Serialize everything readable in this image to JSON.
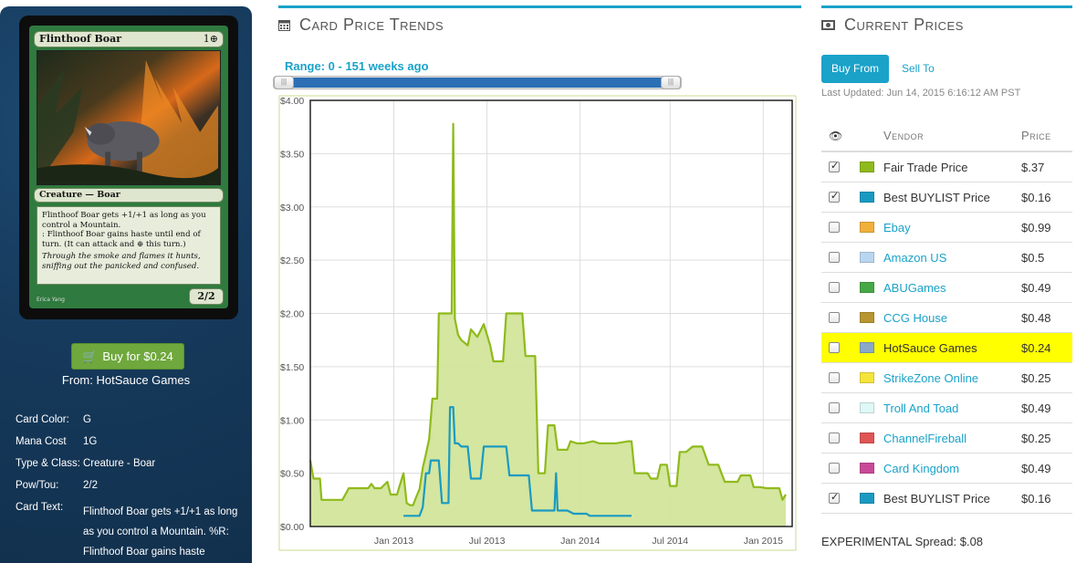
{
  "card": {
    "name": "Flinthoof Boar",
    "cost": "1⊕",
    "type_line": "Creature — Boar",
    "rules_1": "Flinthoof Boar gets +1/+1 as long as you control a Mountain.",
    "rules_2": ": Flinthoof Boar gains haste until end of turn. (It can attack and ⊕ this turn.)",
    "flavor": "Through the smoke and flames it hunts, sniffing out the panicked and confused.",
    "pt": "2/2",
    "artist": "Erica Yang"
  },
  "buy": {
    "label": "Buy for $0.24",
    "from": "From: HotSauce Games"
  },
  "details": [
    {
      "key": "Card Color:",
      "value": "G"
    },
    {
      "key": "Mana Cost",
      "value": "1G"
    },
    {
      "key": "Type & Class:",
      "value": "Creature - Boar"
    },
    {
      "key": "Pow/Tou:",
      "value": "2/2"
    },
    {
      "key": "Card Text:",
      "value": "Flinthoof Boar gets +1/+1 as long as you control a Mountain. %R: Flinthoof Boar gains haste"
    }
  ],
  "trends": {
    "title": "Card Price Trends",
    "range_label": "Range: 0 - 151 weeks ago",
    "handle_glyph": "|||"
  },
  "chart_data": {
    "type": "line",
    "ylim": [
      0,
      4
    ],
    "y_ticks": [
      "$0.00",
      "$0.50",
      "$1.00",
      "$1.50",
      "$2.00",
      "$2.50",
      "$3.00",
      "$3.50",
      "$4.00"
    ],
    "x_ticks": [
      "Jan 2013",
      "Jul 2013",
      "Jan 2014",
      "Jul 2014",
      "Jan 2015"
    ],
    "series": [
      {
        "name": "Fair Trade Price",
        "color": "#8fba1c",
        "fill": "#d2e59a",
        "points": [
          [
            0,
            0.62
          ],
          [
            0.01,
            0.45
          ],
          [
            0.03,
            0.45
          ],
          [
            0.035,
            0.25
          ],
          [
            0.07,
            0.25
          ],
          [
            0.08,
            0.25
          ],
          [
            0.1,
            0.25
          ],
          [
            0.12,
            0.36
          ],
          [
            0.16,
            0.36
          ],
          [
            0.18,
            0.36
          ],
          [
            0.19,
            0.4
          ],
          [
            0.2,
            0.36
          ],
          [
            0.22,
            0.36
          ],
          [
            0.24,
            0.42
          ],
          [
            0.25,
            0.3
          ],
          [
            0.27,
            0.3
          ],
          [
            0.29,
            0.5
          ],
          [
            0.3,
            0.22
          ],
          [
            0.31,
            0.2
          ],
          [
            0.32,
            0.2
          ],
          [
            0.33,
            0.28
          ],
          [
            0.34,
            0.35
          ],
          [
            0.35,
            0.55
          ],
          [
            0.36,
            0.68
          ],
          [
            0.37,
            0.82
          ],
          [
            0.38,
            1.2
          ],
          [
            0.395,
            1.2
          ],
          [
            0.4,
            2.0
          ],
          [
            0.44,
            2.0
          ],
          [
            0.445,
            3.78
          ],
          [
            0.45,
            1.95
          ],
          [
            0.46,
            1.8
          ],
          [
            0.47,
            1.75
          ],
          [
            0.49,
            1.7
          ],
          [
            0.5,
            1.85
          ],
          [
            0.52,
            1.78
          ],
          [
            0.54,
            1.9
          ],
          [
            0.56,
            1.7
          ],
          [
            0.57,
            1.55
          ],
          [
            0.6,
            1.55
          ],
          [
            0.61,
            2.0
          ],
          [
            0.66,
            2.0
          ],
          [
            0.67,
            1.6
          ],
          [
            0.7,
            1.6
          ],
          [
            0.71,
            0.5
          ],
          [
            0.73,
            0.5
          ],
          [
            0.74,
            0.95
          ],
          [
            0.76,
            0.95
          ],
          [
            0.77,
            0.72
          ],
          [
            0.8,
            0.72
          ],
          [
            0.81,
            0.8
          ],
          [
            0.83,
            0.78
          ],
          [
            0.85,
            0.78
          ],
          [
            0.88,
            0.8
          ],
          [
            0.9,
            0.78
          ],
          [
            0.95,
            0.78
          ],
          [
            0.99,
            0.8
          ],
          [
            1.0,
            0.8
          ],
          [
            1.01,
            0.5
          ],
          [
            1.05,
            0.5
          ],
          [
            1.06,
            0.45
          ],
          [
            1.08,
            0.45
          ],
          [
            1.09,
            0.58
          ],
          [
            1.11,
            0.58
          ],
          [
            1.12,
            0.38
          ],
          [
            1.14,
            0.38
          ],
          [
            1.15,
            0.7
          ],
          [
            1.17,
            0.7
          ],
          [
            1.19,
            0.75
          ],
          [
            1.22,
            0.75
          ],
          [
            1.24,
            0.58
          ],
          [
            1.27,
            0.58
          ],
          [
            1.29,
            0.42
          ],
          [
            1.33,
            0.42
          ],
          [
            1.34,
            0.48
          ],
          [
            1.37,
            0.48
          ],
          [
            1.38,
            0.37
          ],
          [
            1.4,
            0.37
          ],
          [
            1.42,
            0.36
          ],
          [
            1.46,
            0.36
          ],
          [
            1.47,
            0.25
          ],
          [
            1.48,
            0.3
          ]
        ]
      },
      {
        "name": "Best BUYLIST Price",
        "color": "#1a9ac2",
        "points": [
          [
            0.29,
            0.1
          ],
          [
            0.34,
            0.1
          ],
          [
            0.35,
            0.18
          ],
          [
            0.36,
            0.5
          ],
          [
            0.37,
            0.5
          ],
          [
            0.375,
            0.62
          ],
          [
            0.38,
            0.62
          ],
          [
            0.4,
            0.62
          ],
          [
            0.41,
            0.22
          ],
          [
            0.43,
            0.22
          ],
          [
            0.435,
            1.12
          ],
          [
            0.445,
            1.12
          ],
          [
            0.45,
            0.78
          ],
          [
            0.46,
            0.78
          ],
          [
            0.47,
            0.75
          ],
          [
            0.49,
            0.75
          ],
          [
            0.5,
            0.45
          ],
          [
            0.53,
            0.45
          ],
          [
            0.54,
            0.75
          ],
          [
            0.61,
            0.75
          ],
          [
            0.62,
            0.48
          ],
          [
            0.68,
            0.48
          ],
          [
            0.69,
            0.15
          ],
          [
            0.76,
            0.15
          ],
          [
            0.765,
            0.5
          ],
          [
            0.77,
            0.15
          ],
          [
            0.8,
            0.15
          ],
          [
            0.82,
            0.12
          ],
          [
            0.86,
            0.12
          ],
          [
            0.87,
            0.1
          ],
          [
            1.0,
            0.1
          ]
        ]
      }
    ]
  },
  "prices": {
    "title": "Current Prices",
    "tab_buy": "Buy From",
    "tab_sell": "Sell To",
    "last_updated": "Last Updated: Jun 14, 2015 6:16:12 AM PST",
    "col_vendor": "Vendor",
    "col_price": "Price",
    "rows": [
      {
        "checked": true,
        "color": "#8fba1c",
        "name": "Fair Trade Price",
        "price": "$.37",
        "link": false,
        "highlight": false
      },
      {
        "checked": true,
        "color": "#1a9ac2",
        "name": "Best BUYLIST Price",
        "price": "$0.16",
        "link": false,
        "highlight": false
      },
      {
        "checked": false,
        "color": "#f0b03a",
        "name": "Ebay",
        "price": "$0.99",
        "link": true,
        "highlight": false
      },
      {
        "checked": false,
        "color": "#b9d6f0",
        "name": "Amazon US",
        "price": "$0.5",
        "link": true,
        "highlight": false
      },
      {
        "checked": false,
        "color": "#46a846",
        "name": "ABUGames",
        "price": "$0.49",
        "link": true,
        "highlight": false
      },
      {
        "checked": false,
        "color": "#b89530",
        "name": "CCG House",
        "price": "$0.48",
        "link": true,
        "highlight": false
      },
      {
        "checked": false,
        "color": "#8aa9c8",
        "name": "HotSauce Games",
        "price": "$0.24",
        "link": false,
        "highlight": true
      },
      {
        "checked": false,
        "color": "#f5e43a",
        "name": "StrikeZone Online",
        "price": "$0.25",
        "link": true,
        "highlight": false
      },
      {
        "checked": false,
        "color": "#def7f7",
        "name": "Troll And Toad",
        "price": "$0.49",
        "link": true,
        "highlight": false
      },
      {
        "checked": false,
        "color": "#e05555",
        "name": "ChannelFireball",
        "price": "$0.25",
        "link": true,
        "highlight": false
      },
      {
        "checked": false,
        "color": "#c84a98",
        "name": "Card Kingdom",
        "price": "$0.49",
        "link": true,
        "highlight": false
      },
      {
        "checked": true,
        "color": "#1a9ac2",
        "name": "Best BUYLIST Price",
        "price": "$0.16",
        "link": false,
        "highlight": false
      }
    ],
    "spread": "EXPERIMENTAL Spread: $.08"
  }
}
